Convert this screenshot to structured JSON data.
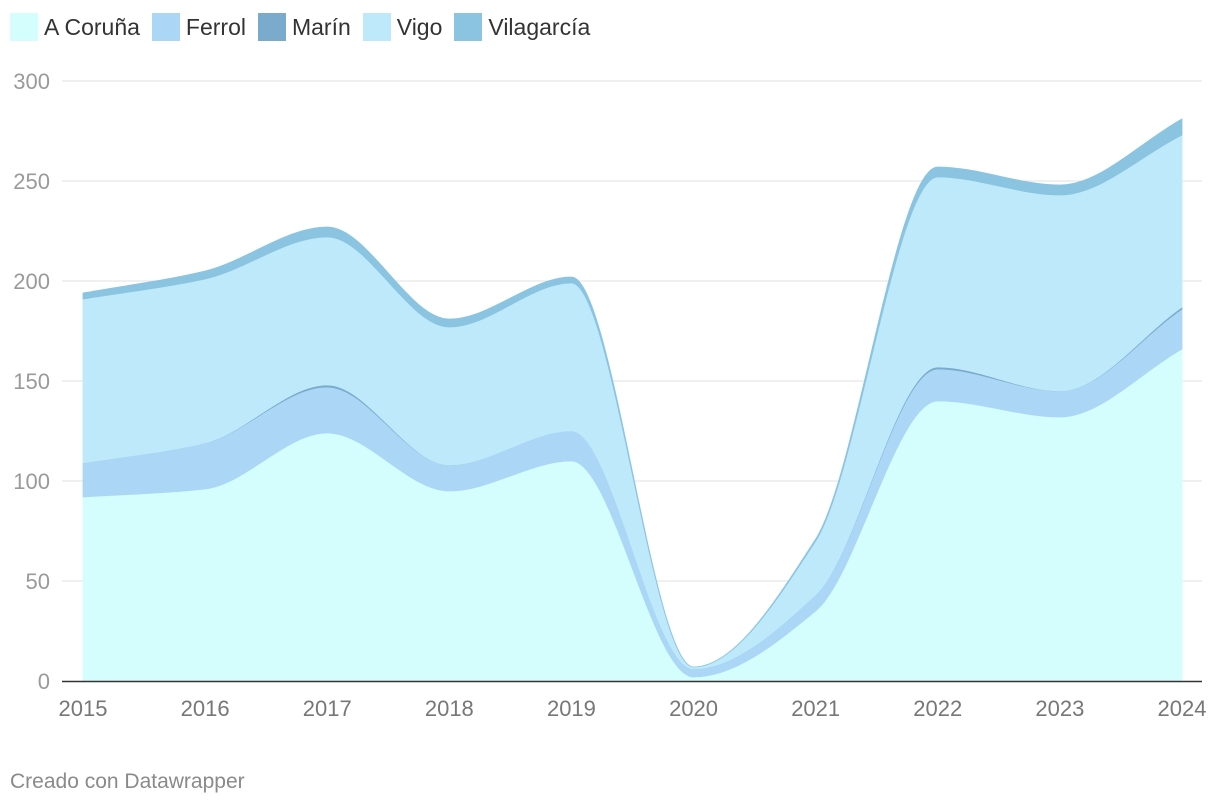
{
  "chart_data": {
    "type": "area",
    "stacked": true,
    "smooth": true,
    "x": [
      "2015",
      "2016",
      "2017",
      "2018",
      "2019",
      "2020",
      "2021",
      "2022",
      "2023",
      "2024"
    ],
    "ylim": [
      0,
      300
    ],
    "yticks": [
      "0",
      "50",
      "100",
      "150",
      "200",
      "250",
      "300"
    ],
    "ytick_values": [
      0,
      50,
      100,
      150,
      200,
      250,
      300
    ],
    "grid": true,
    "legend_position": "top-left",
    "series": [
      {
        "name": "A Coruña",
        "color": "#d4fdfd",
        "values": [
          92,
          96,
          124,
          95,
          110,
          2,
          35,
          140,
          132,
          166
        ]
      },
      {
        "name": "Ferrol",
        "color": "#abd6f5",
        "values": [
          17,
          23,
          23,
          13,
          15,
          4,
          8,
          16,
          13,
          20
        ]
      },
      {
        "name": "Marín",
        "color": "#7aabcd",
        "values": [
          0,
          0,
          1,
          0,
          0,
          0,
          0,
          1,
          0,
          1
        ]
      },
      {
        "name": "Vigo",
        "color": "#bde9fb",
        "values": [
          82,
          82,
          74,
          69,
          74,
          1,
          27,
          95,
          98,
          86
        ]
      },
      {
        "name": "Vilagarcía",
        "color": "#8bc4e0",
        "values": [
          3,
          4,
          5,
          4,
          3,
          0,
          1,
          5,
          5,
          8
        ]
      }
    ]
  },
  "footer": {
    "credit": "Creado con Datawrapper"
  }
}
